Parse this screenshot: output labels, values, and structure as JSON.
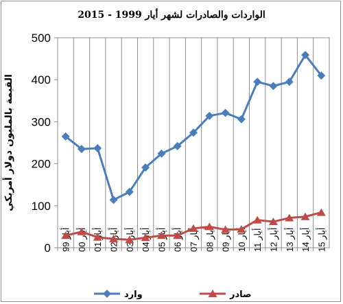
{
  "chart_data": {
    "type": "line",
    "title": "الواردات والصادرات لشهر أيار 1999 - 2015",
    "xlabel": "",
    "ylabel": "القيمة بالمليون دولار أمريكي",
    "ylim": [
      0,
      500
    ],
    "yticks": [
      0,
      100,
      200,
      300,
      400,
      500
    ],
    "grid": "vertical",
    "legend": "bottom",
    "categories": [
      "أيار 99",
      "أيار 00",
      "أيار 01",
      "أيار 02",
      "أيار 03",
      "أيار 04",
      "أيار 05",
      "أيار 06",
      "أيار 07",
      "أيار 08",
      "أيار 09",
      "أيار 10",
      "أيار 11",
      "أيار 12",
      "أيار 13",
      "أيار 14",
      "أيار 15"
    ],
    "series": [
      {
        "name": "وارد",
        "color": "#4a7ebb",
        "marker": "diamond",
        "values": [
          265,
          235,
          237,
          114,
          133,
          191,
          224,
          242,
          274,
          314,
          321,
          306,
          395,
          385,
          395,
          459,
          410
        ]
      },
      {
        "name": "صادر",
        "color": "#be4b48",
        "marker": "triangle",
        "values": [
          29,
          38,
          25,
          21,
          19,
          24,
          29,
          29,
          46,
          50,
          43,
          44,
          66,
          62,
          71,
          74,
          84
        ]
      }
    ]
  }
}
